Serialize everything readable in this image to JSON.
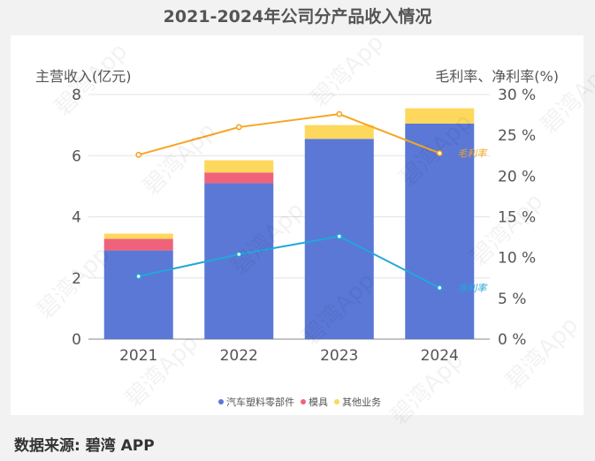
{
  "title": "2021-2024年公司分产品收入情况",
  "source": "数据来源: 碧湾 APP",
  "watermark": "碧湾App",
  "chart_data": {
    "type": "bar",
    "title": "2021-2024年公司分产品收入情况",
    "categories": [
      "2021",
      "2022",
      "2023",
      "2024"
    ],
    "ylabel": "主营收入(亿元)",
    "y2label": "毛利率、净利率(%)",
    "ylim": [
      0,
      8
    ],
    "y2lim": [
      0,
      30
    ],
    "yticks": [
      "0",
      "2",
      "4",
      "6",
      "8"
    ],
    "y2ticks": [
      "0 %",
      "5 %",
      "10 %",
      "15 %",
      "20 %",
      "25 %",
      "30 %"
    ],
    "series": [
      {
        "name": "汽车塑料零部件",
        "kind": "bar",
        "color": "#5b78d6",
        "values": [
          2.9,
          5.1,
          6.55,
          7.05
        ]
      },
      {
        "name": "模具",
        "kind": "bar",
        "color": "#f0627a",
        "values": [
          0.38,
          0.35,
          0.0,
          0.0
        ]
      },
      {
        "name": "其他业务",
        "kind": "bar",
        "color": "#fdd85d",
        "values": [
          0.17,
          0.4,
          0.45,
          0.5
        ]
      },
      {
        "name": "毛利率",
        "kind": "line",
        "axis": "right",
        "color": "#f5a623",
        "values": [
          22.6,
          26.0,
          27.6,
          22.8
        ]
      },
      {
        "name": "净利率",
        "kind": "line",
        "axis": "right",
        "color": "#22a7d8",
        "values": [
          7.7,
          10.4,
          12.6,
          6.3
        ]
      }
    ],
    "legend": [
      "汽车塑料零部件",
      "模具",
      "其他业务"
    ],
    "line_labels": [
      "毛利率",
      "净利率"
    ]
  }
}
